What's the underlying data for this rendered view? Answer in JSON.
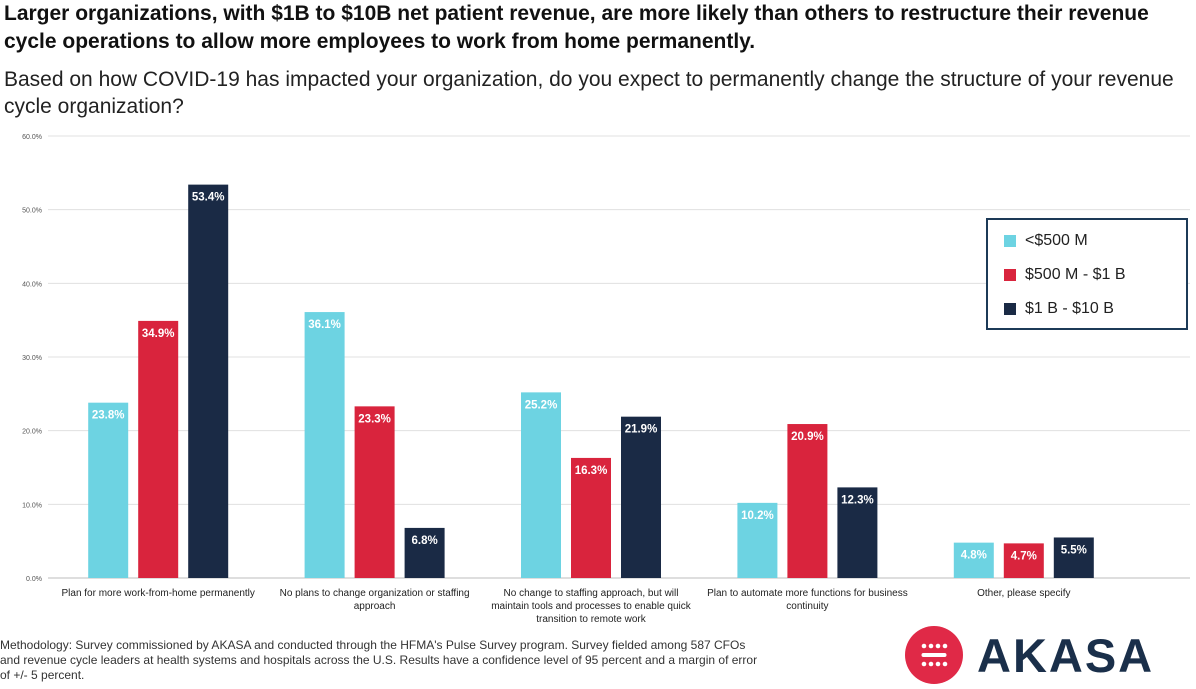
{
  "header": {
    "title": "Larger organizations, with $1B to $10B net patient revenue, are more likely than others to restructure their revenue cycle operations to allow more employees to work from home permanently.",
    "subtitle": "Based on how COVID-19 has impacted your organization, do you expect to permanently change the structure of your revenue cycle organization?"
  },
  "chart_data": {
    "type": "bar",
    "title": "",
    "xlabel": "",
    "ylabel": "",
    "ylim": [
      0,
      60
    ],
    "yticks": [
      "0.0%",
      "10.0%",
      "20.0%",
      "30.0%",
      "40.0%",
      "50.0%",
      "60.0%"
    ],
    "grid": true,
    "legend_position": "right",
    "categories": [
      [
        "Plan for more work-from-home permanently"
      ],
      [
        "No plans to change organization or staffing",
        "approach"
      ],
      [
        "No change to staffing approach, but will",
        "maintain tools and processes to enable quick",
        "transition to remote work"
      ],
      [
        "Plan to automate more functions for business",
        "continuity"
      ],
      [
        "Other, please specify"
      ]
    ],
    "series": [
      {
        "name": "<$500 M",
        "color": "#6dd3e2",
        "values": [
          23.8,
          36.1,
          25.2,
          10.2,
          4.8
        ],
        "labels": [
          "23.8%",
          "36.1%",
          "25.2%",
          "10.2%",
          "4.8%"
        ]
      },
      {
        "name": "$500 M - $1 B",
        "color": "#d9243d",
        "values": [
          34.9,
          23.3,
          16.3,
          20.9,
          4.7
        ],
        "labels": [
          "34.9%",
          "23.3%",
          "16.3%",
          "20.9%",
          "4.7%"
        ]
      },
      {
        "name": "$1 B - $10 B",
        "color": "#1a2a45",
        "values": [
          53.4,
          6.8,
          21.9,
          12.3,
          5.5
        ],
        "labels": [
          "53.4%",
          "6.8%",
          "21.9%",
          "12.3%",
          "5.5%"
        ]
      }
    ]
  },
  "footer": {
    "methodology": "Methodology: Survey commissioned by  AKASA and conducted through the HFMA's Pulse Survey program. Survey fielded among 587 CFOs and revenue cycle leaders at health systems and hospitals across the U.S. Results have a confidence level of 95 percent and a margin of error of +/- 5 percent."
  },
  "logo": {
    "text": "AKASA",
    "color": "#e02947"
  }
}
